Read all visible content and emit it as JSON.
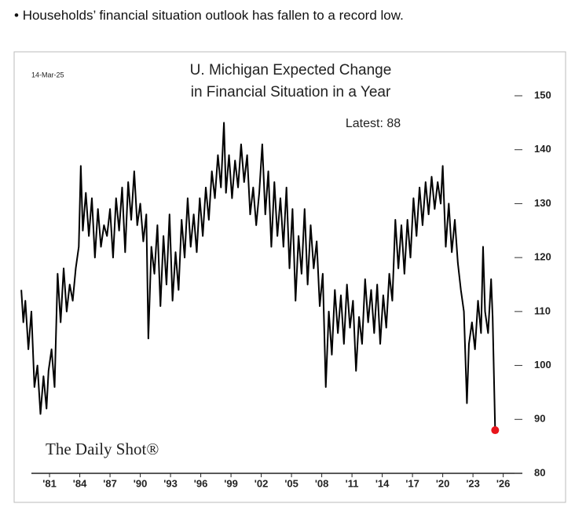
{
  "headline": "Households’ financial situation outlook has fallen to a record low.",
  "chart_data": {
    "type": "line",
    "title": "U. Michigan Expected Change",
    "subtitle": "in Financial Situation in a Year",
    "date": "14-Mar-25",
    "annotation": "Latest:  88",
    "source": "The Daily Shot®",
    "xlim": [
      1977.8,
      2027.9
    ],
    "ylim": [
      80,
      150
    ],
    "yticks": [
      80,
      90,
      100,
      110,
      120,
      130,
      140,
      150
    ],
    "xticks": [
      {
        "value": 1981,
        "label": "'81"
      },
      {
        "value": 1984,
        "label": "'84"
      },
      {
        "value": 1987,
        "label": "'87"
      },
      {
        "value": 1990,
        "label": "'90"
      },
      {
        "value": 1993,
        "label": "'93"
      },
      {
        "value": 1996,
        "label": "'96"
      },
      {
        "value": 1999,
        "label": "'99"
      },
      {
        "value": 2002,
        "label": "'02"
      },
      {
        "value": 2005,
        "label": "'05"
      },
      {
        "value": 2008,
        "label": "'08"
      },
      {
        "value": 2011,
        "label": "'11"
      },
      {
        "value": 2014,
        "label": "'14"
      },
      {
        "value": 2017,
        "label": "'17"
      },
      {
        "value": 2020,
        "label": "'20"
      },
      {
        "value": 2023,
        "label": "'23"
      },
      {
        "value": 2026,
        "label": "'26"
      }
    ],
    "series": [
      {
        "name": "Expected Change in Financial Situation",
        "color": "#000000",
        "latest_color": "#e8141b",
        "x": [
          1978.2,
          1978.4,
          1978.6,
          1978.9,
          1979.2,
          1979.5,
          1979.8,
          1980.1,
          1980.4,
          1980.7,
          1980.9,
          1981.2,
          1981.5,
          1981.8,
          1982.1,
          1982.4,
          1982.7,
          1983.0,
          1983.3,
          1983.6,
          1983.9,
          1984.1,
          1984.3,
          1984.6,
          1984.9,
          1985.2,
          1985.5,
          1985.8,
          1986.1,
          1986.4,
          1986.7,
          1987.0,
          1987.3,
          1987.6,
          1987.9,
          1988.2,
          1988.5,
          1988.8,
          1989.1,
          1989.4,
          1989.7,
          1990.0,
          1990.3,
          1990.6,
          1990.8,
          1991.1,
          1991.4,
          1991.7,
          1992.0,
          1992.3,
          1992.6,
          1992.9,
          1993.2,
          1993.5,
          1993.8,
          1994.1,
          1994.4,
          1994.7,
          1995.0,
          1995.3,
          1995.6,
          1995.9,
          1996.2,
          1996.5,
          1996.8,
          1997.1,
          1997.4,
          1997.7,
          1998.0,
          1998.3,
          1998.5,
          1998.8,
          1999.1,
          1999.4,
          1999.7,
          2000.0,
          2000.3,
          2000.6,
          2000.9,
          2001.2,
          2001.5,
          2001.8,
          2002.1,
          2002.4,
          2002.7,
          2003.0,
          2003.3,
          2003.6,
          2003.9,
          2004.2,
          2004.5,
          2004.8,
          2005.1,
          2005.4,
          2005.7,
          2006.0,
          2006.3,
          2006.6,
          2006.9,
          2007.2,
          2007.5,
          2007.8,
          2008.1,
          2008.4,
          2008.7,
          2009.0,
          2009.3,
          2009.6,
          2009.9,
          2010.2,
          2010.5,
          2010.8,
          2011.1,
          2011.4,
          2011.7,
          2012.0,
          2012.3,
          2012.6,
          2012.9,
          2013.2,
          2013.5,
          2013.8,
          2014.1,
          2014.4,
          2014.7,
          2015.0,
          2015.3,
          2015.6,
          2015.9,
          2016.2,
          2016.5,
          2016.8,
          2017.1,
          2017.4,
          2017.7,
          2018.0,
          2018.3,
          2018.6,
          2018.9,
          2019.2,
          2019.5,
          2019.8,
          2020.0,
          2020.3,
          2020.6,
          2020.9,
          2021.2,
          2021.5,
          2021.8,
          2022.1,
          2022.4,
          2022.6,
          2022.9,
          2023.2,
          2023.5,
          2023.8,
          2024.0,
          2024.2,
          2024.5,
          2024.8,
          2024.95,
          2025.2
        ],
        "values": [
          114,
          108,
          112,
          103,
          110,
          96,
          100,
          91,
          98,
          92,
          99,
          103,
          96,
          117,
          108,
          118,
          110,
          115,
          112,
          118,
          122,
          137,
          125,
          132,
          124,
          131,
          120,
          129,
          122,
          126,
          124,
          129,
          120,
          131,
          125,
          133,
          121,
          134,
          127,
          136,
          126,
          130,
          123,
          128,
          105,
          122,
          117,
          126,
          111,
          124,
          115,
          128,
          112,
          121,
          114,
          127,
          120,
          131,
          122,
          128,
          121,
          131,
          124,
          133,
          127,
          136,
          131,
          139,
          133,
          145,
          132,
          139,
          131,
          138,
          133,
          141,
          134,
          139,
          128,
          133,
          126,
          132,
          141,
          128,
          136,
          122,
          134,
          124,
          131,
          122,
          133,
          118,
          129,
          112,
          124,
          117,
          129,
          115,
          126,
          118,
          123,
          111,
          117,
          96,
          110,
          102,
          114,
          106,
          113,
          104,
          115,
          107,
          112,
          99,
          109,
          104,
          116,
          108,
          114,
          106,
          115,
          104,
          113,
          107,
          117,
          112,
          127,
          118,
          126,
          117,
          127,
          120,
          131,
          124,
          133,
          126,
          134,
          128,
          135,
          129,
          134,
          130,
          137,
          122,
          130,
          121,
          127,
          119,
          114,
          110,
          93,
          104,
          108,
          103,
          112,
          106,
          122,
          110,
          106,
          116,
          109,
          88
        ]
      }
    ]
  }
}
